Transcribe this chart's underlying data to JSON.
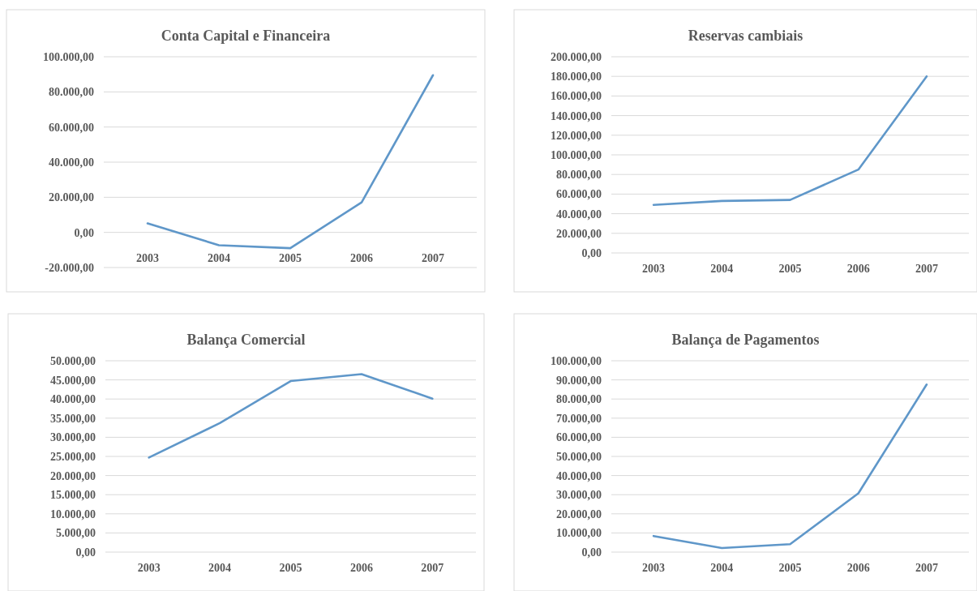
{
  "chart_data": [
    {
      "type": "line",
      "title": "Conta Capital e Financeira",
      "categories": [
        "2003",
        "2004",
        "2005",
        "2006",
        "2007"
      ],
      "series": [
        {
          "color": "#5f97c9",
          "values": [
            5100,
            -7300,
            -9000,
            17100,
            89500
          ]
        }
      ],
      "ylim": [
        -20000,
        100000
      ],
      "yticks": [
        {
          "value": -20000,
          "label": "-20.000,00"
        },
        {
          "value": 0,
          "label": "0,00"
        },
        {
          "value": 20000,
          "label": "20.000,00"
        },
        {
          "value": 40000,
          "label": "40.000,00"
        },
        {
          "value": 60000,
          "label": "60.000,00"
        },
        {
          "value": 80000,
          "label": "80.000,00"
        },
        {
          "value": 100000,
          "label": "100.000,00"
        }
      ],
      "grid": "y"
    },
    {
      "type": "line",
      "title": "Reservas cambiais",
      "categories": [
        "2003",
        "2004",
        "2005",
        "2006",
        "2007"
      ],
      "series": [
        {
          "color": "#5f97c9",
          "values": [
            49000,
            53000,
            54000,
            85000,
            180000
          ]
        }
      ],
      "ylim": [
        0,
        200000
      ],
      "yticks": [
        {
          "value": 0,
          "label": "0,00"
        },
        {
          "value": 20000,
          "label": "20.000,00"
        },
        {
          "value": 40000,
          "label": "40.000,00"
        },
        {
          "value": 60000,
          "label": "60.000,00"
        },
        {
          "value": 80000,
          "label": "80.000,00"
        },
        {
          "value": 100000,
          "label": "100.000,00"
        },
        {
          "value": 120000,
          "label": "120.000,00"
        },
        {
          "value": 140000,
          "label": "140.000,00"
        },
        {
          "value": 160000,
          "label": "160.000,00"
        },
        {
          "value": 180000,
          "label": "180.000,00"
        },
        {
          "value": 200000,
          "label": "200.000,00"
        }
      ],
      "grid": "y"
    },
    {
      "type": "line",
      "title": "Balança Comercial",
      "categories": [
        "2003",
        "2004",
        "2005",
        "2006",
        "2007"
      ],
      "series": [
        {
          "color": "#5f97c9",
          "values": [
            24700,
            33700,
            44700,
            46500,
            40100
          ]
        }
      ],
      "ylim": [
        0,
        50000
      ],
      "yticks": [
        {
          "value": 0,
          "label": "0,00"
        },
        {
          "value": 5000,
          "label": "5.000,00"
        },
        {
          "value": 10000,
          "label": "10.000,00"
        },
        {
          "value": 15000,
          "label": "15.000,00"
        },
        {
          "value": 20000,
          "label": "20.000,00"
        },
        {
          "value": 25000,
          "label": "25.000,00"
        },
        {
          "value": 30000,
          "label": "30.000,00"
        },
        {
          "value": 35000,
          "label": "35.000,00"
        },
        {
          "value": 40000,
          "label": "40.000,00"
        },
        {
          "value": 45000,
          "label": "45.000,00"
        },
        {
          "value": 50000,
          "label": "50.000,00"
        }
      ],
      "grid": "y"
    },
    {
      "type": "line",
      "title": "Balança de Pagamentos",
      "categories": [
        "2003",
        "2004",
        "2005",
        "2006",
        "2007"
      ],
      "series": [
        {
          "color": "#5f97c9",
          "values": [
            8400,
            2100,
            4100,
            30700,
            87600
          ]
        }
      ],
      "ylim": [
        0,
        100000
      ],
      "yticks": [
        {
          "value": 0,
          "label": "0,00"
        },
        {
          "value": 10000,
          "label": "10.000,00"
        },
        {
          "value": 20000,
          "label": "20.000,00"
        },
        {
          "value": 30000,
          "label": "30.000,00"
        },
        {
          "value": 40000,
          "label": "40.000,00"
        },
        {
          "value": 50000,
          "label": "50.000,00"
        },
        {
          "value": 60000,
          "label": "60.000,00"
        },
        {
          "value": 70000,
          "label": "70.000,00"
        },
        {
          "value": 80000,
          "label": "80.000,00"
        },
        {
          "value": 90000,
          "label": "90.000,00"
        },
        {
          "value": 100000,
          "label": "100.000,00"
        }
      ],
      "grid": "y"
    }
  ]
}
